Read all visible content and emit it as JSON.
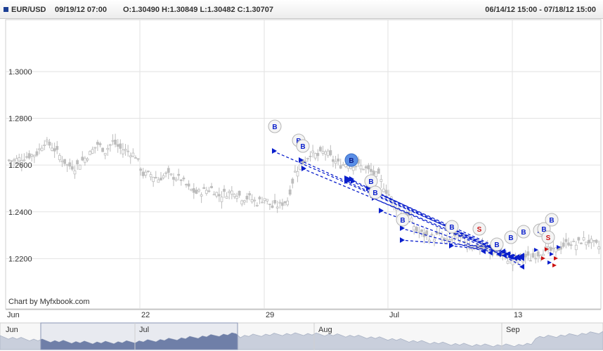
{
  "header": {
    "symbol": "EUR/USD",
    "datetime": "09/19/12 07:00",
    "ohlc": "O:1.30490 H:1.30849 L:1.30482 C:1.30707",
    "range": "06/14/12 15:00 - 07/18/12 15:00"
  },
  "colors": {
    "candle": "#bdbdbd",
    "grid": "#e2e2e2",
    "buy": "#0a1fcc",
    "sell": "#cc1111",
    "navigator_fill": "#c9cfdc",
    "navigator_window": "#6e7ea5"
  },
  "watermark": "Chart by Myfxbook.com",
  "chart_data": {
    "type": "candlestick",
    "ylim": [
      1.1985,
      1.3222
    ],
    "y_ticks": [
      "1.2200",
      "1.2400",
      "1.2600",
      "1.2800",
      "1.3000"
    ],
    "x_ticks": [
      "Jun",
      "22",
      "29",
      "Jul",
      "13"
    ],
    "series_close": [
      1.262,
      1.263,
      1.264,
      1.265,
      1.27,
      1.268,
      1.264,
      1.26,
      1.259,
      1.262,
      1.265,
      1.269,
      1.266,
      1.27,
      1.267,
      1.266,
      1.264,
      1.256,
      1.256,
      1.254,
      1.256,
      1.255,
      1.254,
      1.25,
      1.248,
      1.249,
      1.25,
      1.247,
      1.248,
      1.249,
      1.246,
      1.246,
      1.244,
      1.246,
      1.242,
      1.243,
      1.245,
      1.257,
      1.261,
      1.265,
      1.264,
      1.266,
      1.262,
      1.26,
      1.261,
      1.26,
      1.259,
      1.257,
      1.255,
      1.249,
      1.244,
      1.24,
      1.238,
      1.232,
      1.23,
      1.229,
      1.23,
      1.227,
      1.229,
      1.228,
      1.226,
      1.225,
      1.224,
      1.223,
      1.221,
      1.22,
      1.219,
      1.221,
      1.22,
      1.222,
      1.224,
      1.223,
      1.225,
      1.227,
      1.226,
      1.228,
      1.227,
      1.225
    ],
    "buy_markers": 13,
    "sell_markers": 3,
    "marker_labels": {
      "buy": "B",
      "sell": "S"
    },
    "navigator_months": [
      "Jun",
      "Jul",
      "Aug",
      "Sep"
    ]
  }
}
